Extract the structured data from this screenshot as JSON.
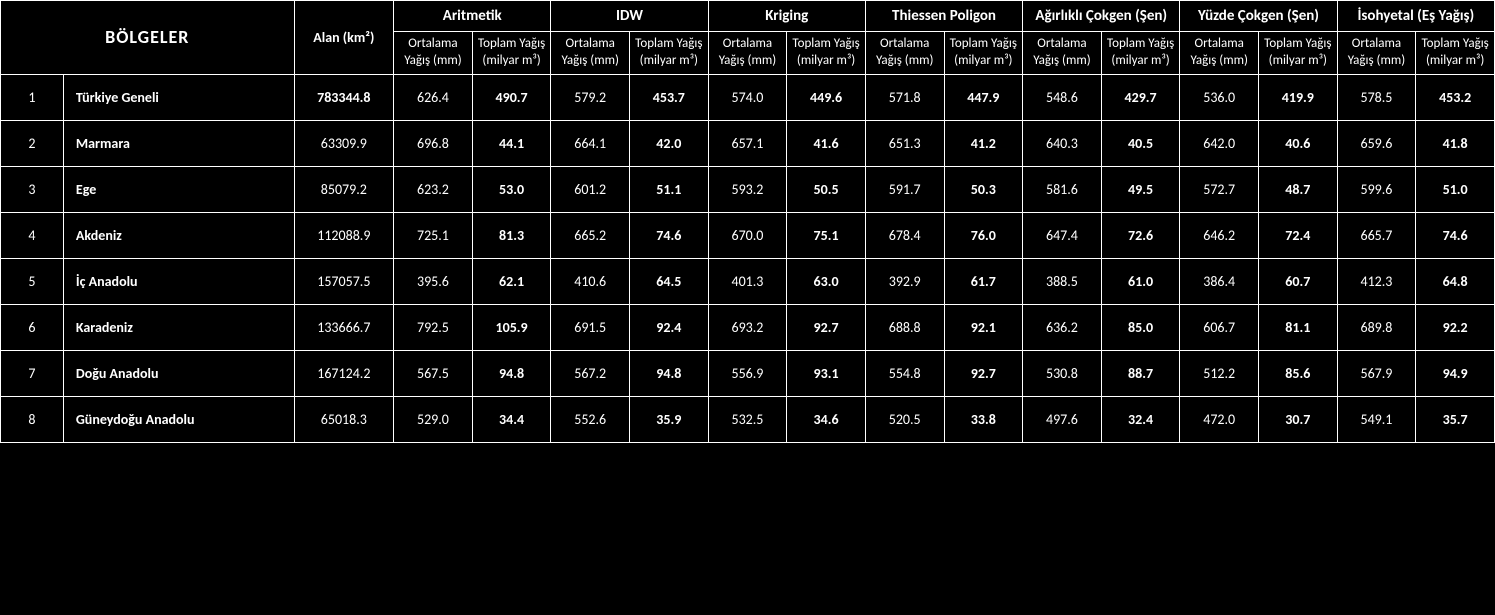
{
  "header": {
    "bolgeler": "BÖLGELER",
    "alan": "Alan (km²)",
    "methods": [
      "Aritmetik",
      "IDW",
      "Kriging",
      "Thiessen Poligon",
      "Ağırlıklı Çokgen (Şen)",
      "Yüzde Çokgen (Şen)",
      "İsohyetal (Eş Yağış)"
    ],
    "sub_ortalama": "Ortalama Yağış (mm)",
    "sub_toplam": "Toplam Yağış (milyar m³)"
  },
  "rows": [
    {
      "idx": "1",
      "region": "Türkiye Geneli",
      "alan": "783344.8",
      "alan_bold": true,
      "vals": [
        "626.4",
        "490.7",
        "579.2",
        "453.7",
        "574.0",
        "449.6",
        "571.8",
        "447.9",
        "548.6",
        "429.7",
        "536.0",
        "419.9",
        "578.5",
        "453.2"
      ]
    },
    {
      "idx": "2",
      "region": "Marmara",
      "alan": "63309.9",
      "alan_bold": false,
      "vals": [
        "696.8",
        "44.1",
        "664.1",
        "42.0",
        "657.1",
        "41.6",
        "651.3",
        "41.2",
        "640.3",
        "40.5",
        "642.0",
        "40.6",
        "659.6",
        "41.8"
      ]
    },
    {
      "idx": "3",
      "region": "Ege",
      "alan": "85079.2",
      "alan_bold": false,
      "vals": [
        "623.2",
        "53.0",
        "601.2",
        "51.1",
        "593.2",
        "50.5",
        "591.7",
        "50.3",
        "581.6",
        "49.5",
        "572.7",
        "48.7",
        "599.6",
        "51.0"
      ]
    },
    {
      "idx": "4",
      "region": "Akdeniz",
      "alan": "112088.9",
      "alan_bold": false,
      "vals": [
        "725.1",
        "81.3",
        "665.2",
        "74.6",
        "670.0",
        "75.1",
        "678.4",
        "76.0",
        "647.4",
        "72.6",
        "646.2",
        "72.4",
        "665.7",
        "74.6"
      ]
    },
    {
      "idx": "5",
      "region": "İç Anadolu",
      "alan": "157057.5",
      "alan_bold": false,
      "vals": [
        "395.6",
        "62.1",
        "410.6",
        "64.5",
        "401.3",
        "63.0",
        "392.9",
        "61.7",
        "388.5",
        "61.0",
        "386.4",
        "60.7",
        "412.3",
        "64.8"
      ]
    },
    {
      "idx": "6",
      "region": "Karadeniz",
      "alan": "133666.7",
      "alan_bold": false,
      "vals": [
        "792.5",
        "105.9",
        "691.5",
        "92.4",
        "693.2",
        "92.7",
        "688.8",
        "92.1",
        "636.2",
        "85.0",
        "606.7",
        "81.1",
        "689.8",
        "92.2"
      ]
    },
    {
      "idx": "7",
      "region": "Doğu Anadolu",
      "alan": "167124.2",
      "alan_bold": false,
      "vals": [
        "567.5",
        "94.8",
        "567.2",
        "94.8",
        "556.9",
        "93.1",
        "554.8",
        "92.7",
        "530.8",
        "88.7",
        "512.2",
        "85.6",
        "567.9",
        "94.9"
      ]
    },
    {
      "idx": "8",
      "region": "Güneydoğu Anadolu",
      "alan": "65018.3",
      "alan_bold": false,
      "vals": [
        "529.0",
        "34.4",
        "552.6",
        "35.9",
        "532.5",
        "34.6",
        "520.5",
        "33.8",
        "497.6",
        "32.4",
        "472.0",
        "30.7",
        "549.1",
        "35.7"
      ]
    }
  ],
  "style": {
    "background_color": "#000000",
    "border_color": "#ffffff",
    "text_color": "#ffffff",
    "font_family": "Calibri",
    "header_fontsize": 14,
    "body_fontsize": 14,
    "bolgeler_fontsize": 18,
    "bold_columns": [
      1,
      3,
      5,
      7,
      9,
      11,
      13
    ]
  }
}
